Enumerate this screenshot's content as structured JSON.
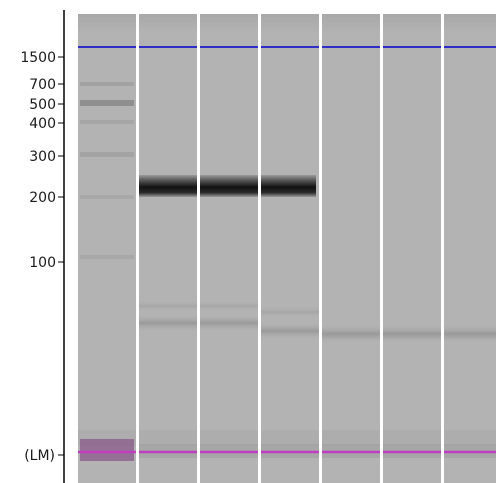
{
  "ladder": {
    "labels": [
      "1500",
      "700",
      "500",
      "400",
      "300",
      "200",
      "100",
      "(LM)"
    ]
  },
  "colors": {
    "background": "#ffffff",
    "lane_gray": "#b3b3b3",
    "separator": "#ffffff",
    "axis": "#000000",
    "upper_marker": "#2f2fc8",
    "lower_marker": "#c03cc0",
    "band_dark": "#111111"
  },
  "lanes": [
    {
      "type": "ladder"
    },
    {
      "type": "sample",
      "bands": [
        {
          "size": 200,
          "intensity": 1.0
        }
      ]
    },
    {
      "type": "sample",
      "bands": [
        {
          "size": 200,
          "intensity": 1.0
        }
      ]
    },
    {
      "type": "sample",
      "bands": [
        {
          "size": 200,
          "intensity": 0.95
        }
      ]
    },
    {
      "type": "sample",
      "bands": []
    },
    {
      "type": "sample",
      "bands": []
    },
    {
      "type": "sample",
      "bands": []
    }
  ]
}
